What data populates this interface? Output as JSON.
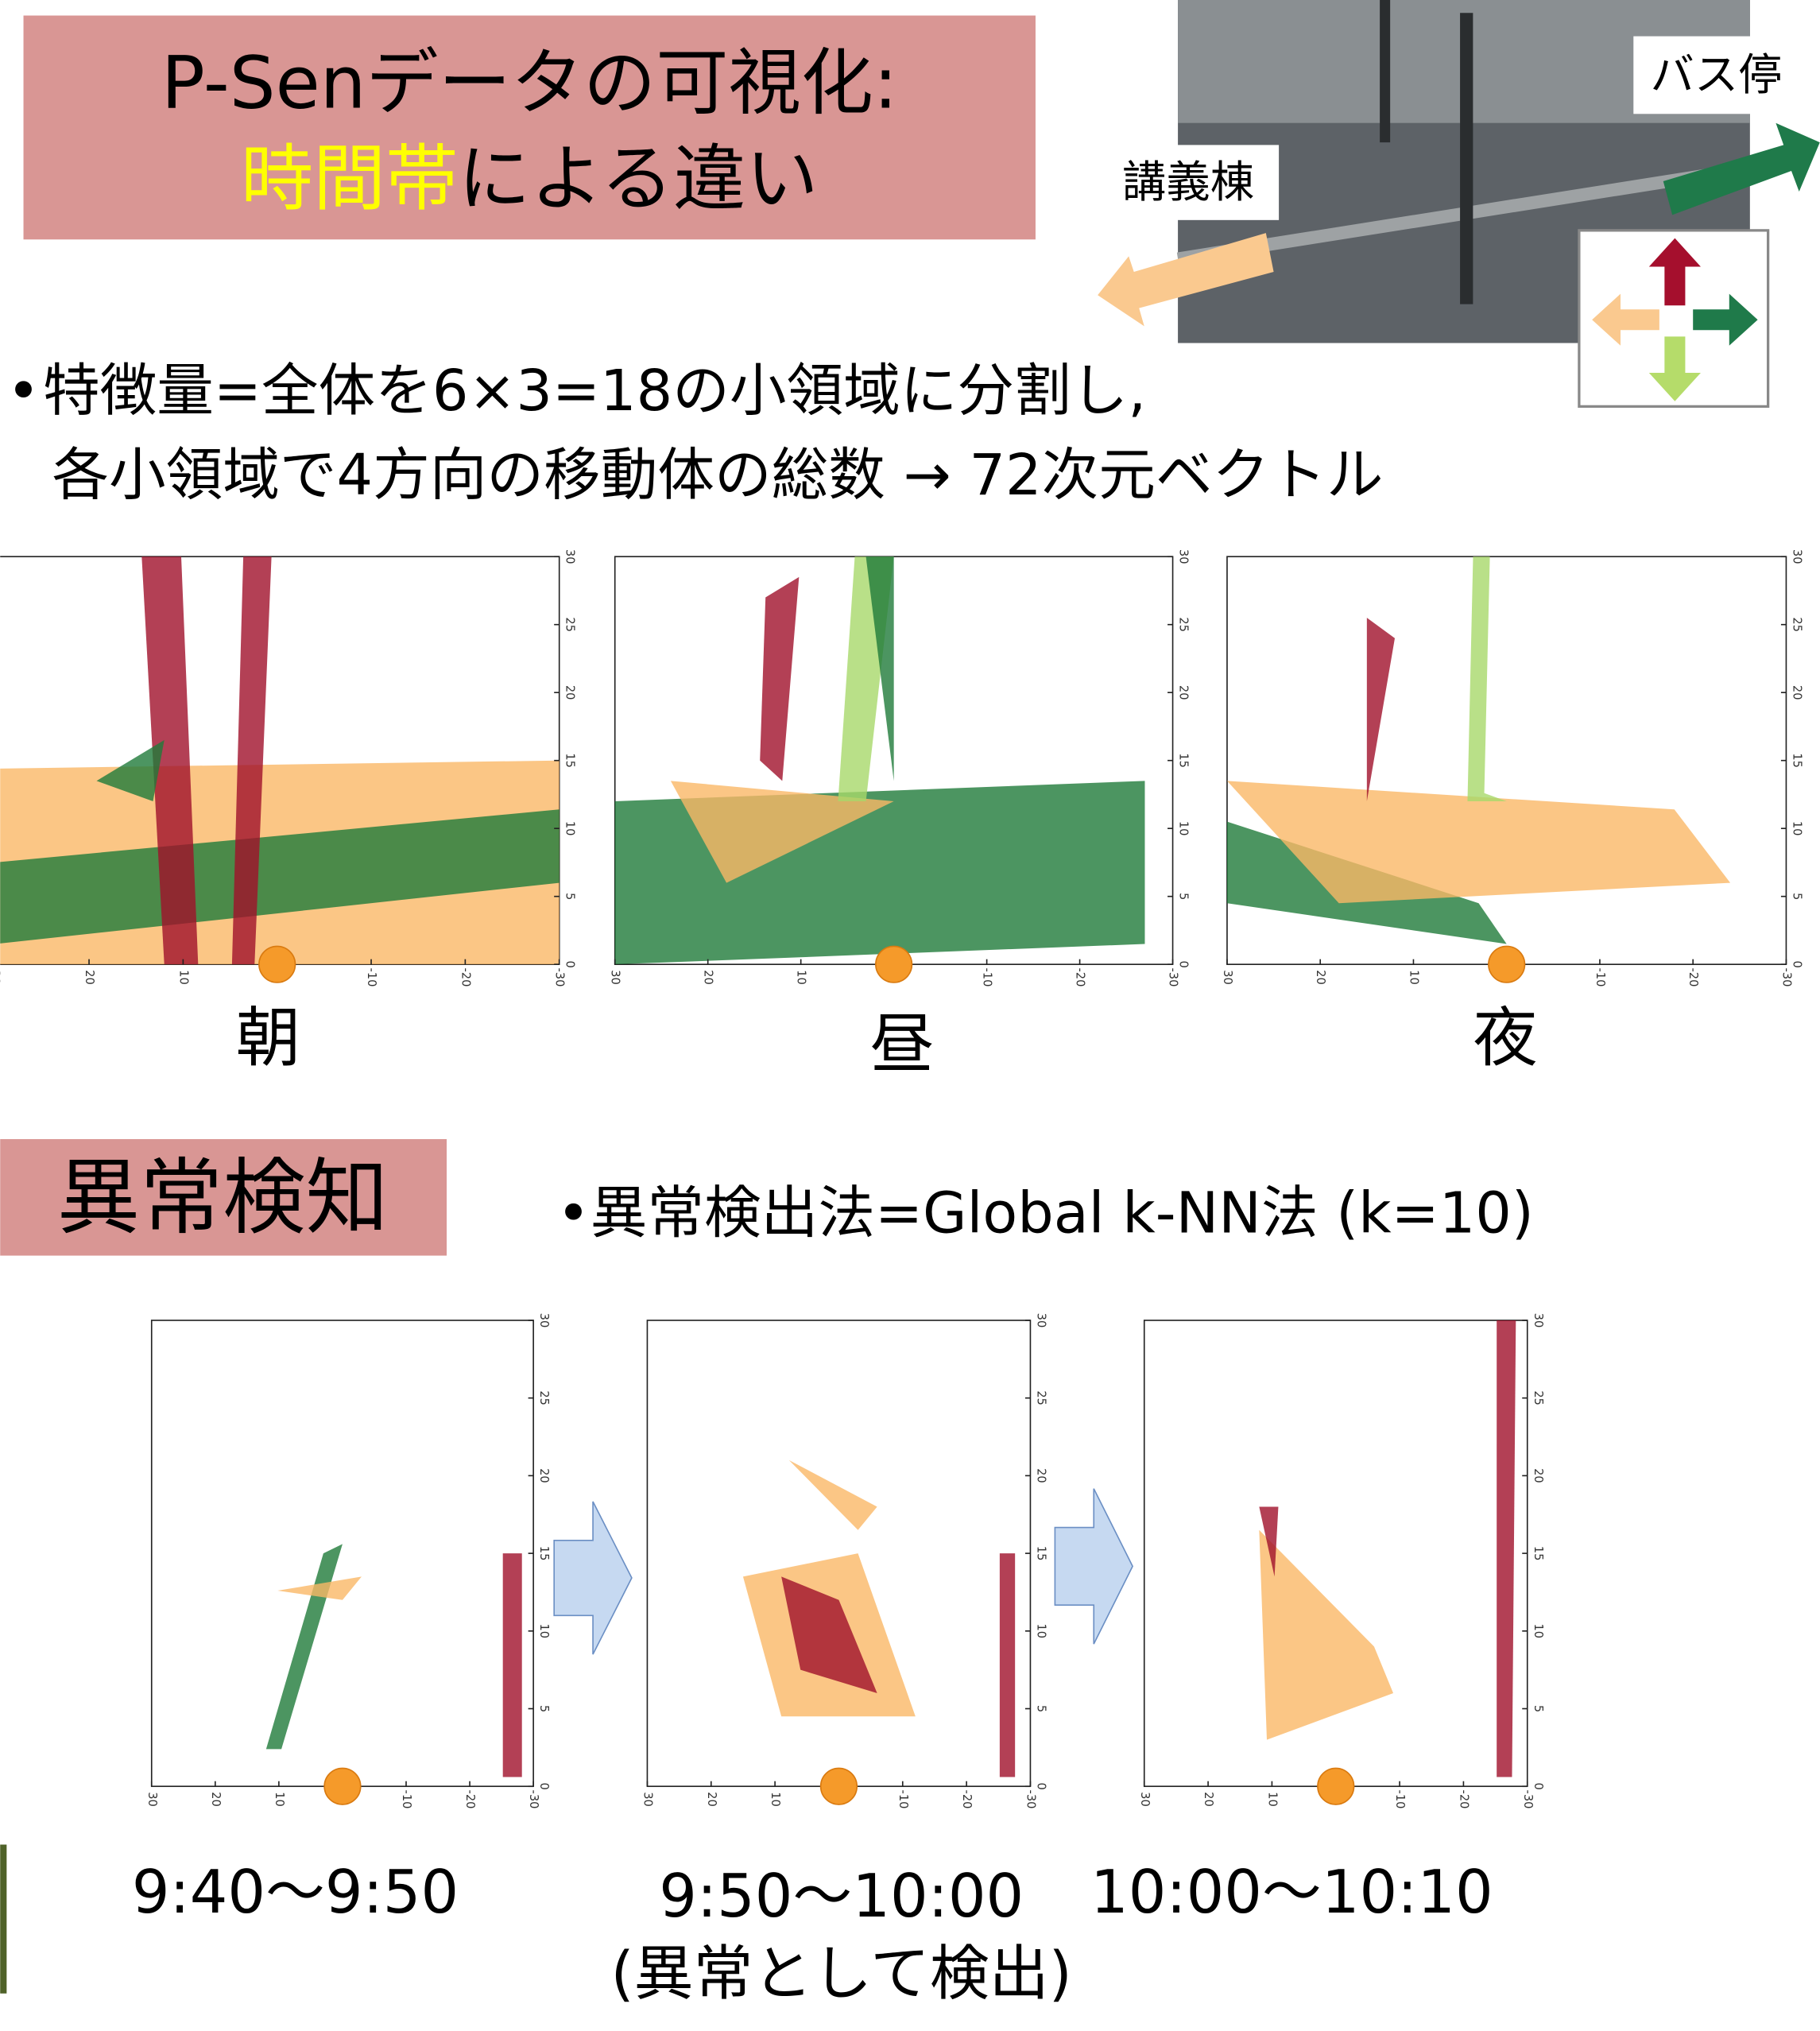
{
  "header": {
    "title_line1": "P-Senデータの可視化:",
    "title_highlight": "時間帯",
    "title_rest": "による違い"
  },
  "photo": {
    "label_bus": "バス停",
    "label_building": "講義棟"
  },
  "bullets": [
    "特徴量=全体を6×3=18の小領域に分割し,",
    "各小領域で4方向の移動体の総数 → 72次元ベクトル"
  ],
  "axes": {
    "xticks": [
      30,
      20,
      10,
      -10,
      -20,
      -30
    ],
    "yticks": [
      0,
      5,
      10,
      15,
      20,
      25,
      30
    ],
    "xlim": [
      30,
      -30
    ],
    "ylim": [
      0,
      30
    ]
  },
  "time_of_day": {
    "labels": [
      "朝",
      "昼",
      "夜"
    ]
  },
  "anomaly": {
    "section_title": "異常検知",
    "bullet": "異常検出法=Global k-NN法 (k=10)",
    "labels": [
      "9:40〜9:50",
      "9:50〜10:00",
      "10:00〜10:10"
    ],
    "note": "(異常として検出)"
  }
}
